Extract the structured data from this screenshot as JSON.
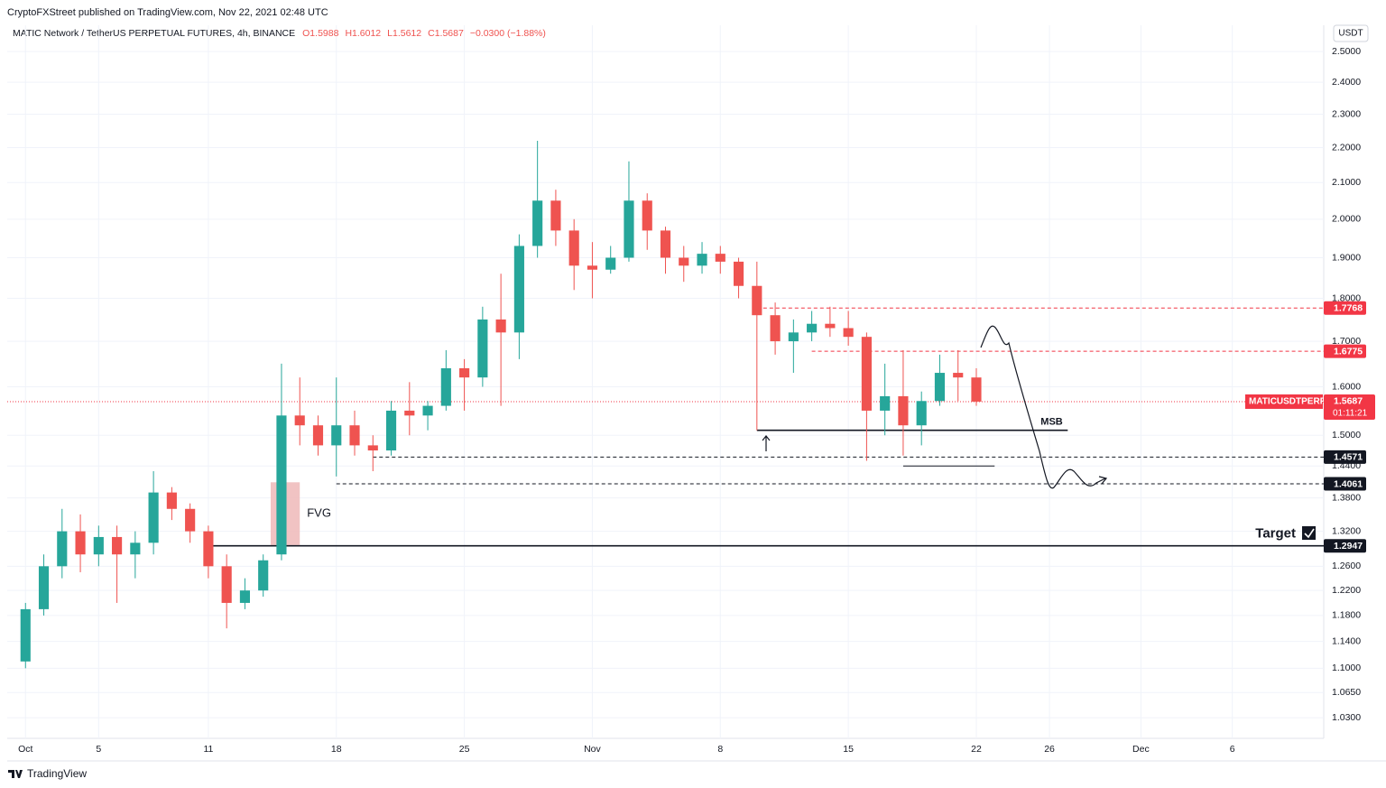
{
  "chart_data": {
    "type": "candlestick",
    "publisher": "CryptoFXStreet published on TradingView.com, Nov 22, 2021 02:48 UTC",
    "title": "MATIC Network / TetherUS PERPETUAL FUTURES, 4h, BINANCE",
    "ohlc": [
      "O1.5988",
      "H1.6012",
      "L1.5612",
      "C1.5687",
      "−0.0300 (−1.88%)"
    ],
    "currency": "USDT",
    "brand": "TradingView",
    "log_scale": true,
    "grid": true,
    "up_color": "#26a69a",
    "down_color": "#ef5350",
    "ylim": [
      1.002,
      2.589
    ],
    "yticks": [
      {
        "value": 2.5,
        "label": "2.5000"
      },
      {
        "value": 2.4,
        "label": "2.4000"
      },
      {
        "value": 2.3,
        "label": "2.3000"
      },
      {
        "value": 2.2,
        "label": "2.2000"
      },
      {
        "value": 2.1,
        "label": "2.1000"
      },
      {
        "value": 2.0,
        "label": "2.0000"
      },
      {
        "value": 1.9,
        "label": "1.9000"
      },
      {
        "value": 1.8,
        "label": "1.8000"
      },
      {
        "value": 1.7,
        "label": "1.7000"
      },
      {
        "value": 1.6,
        "label": "1.6000"
      },
      {
        "value": 1.5,
        "label": "1.5000"
      },
      {
        "value": 1.44,
        "label": "1.4400"
      },
      {
        "value": 1.38,
        "label": "1.3800"
      },
      {
        "value": 1.32,
        "label": "1.3200"
      },
      {
        "value": 1.26,
        "label": "1.2600"
      },
      {
        "value": 1.22,
        "label": "1.2200"
      },
      {
        "value": 1.18,
        "label": "1.1800"
      },
      {
        "value": 1.14,
        "label": "1.1400"
      },
      {
        "value": 1.1,
        "label": "1.1000"
      },
      {
        "value": 1.065,
        "label": "1.0650"
      },
      {
        "value": 1.03,
        "label": "1.0300"
      }
    ],
    "xlim": [
      "Sep 30",
      "Dec 11"
    ],
    "xticks": [
      {
        "value": "Oct 1",
        "label": "Oct"
      },
      {
        "value": "Oct 5",
        "label": "5"
      },
      {
        "value": "Oct 11",
        "label": "11"
      },
      {
        "value": "Oct 18",
        "label": "18"
      },
      {
        "value": "Oct 25",
        "label": "25"
      },
      {
        "value": "Nov 1",
        "label": "Nov"
      },
      {
        "value": "Nov 8",
        "label": "8"
      },
      {
        "value": "Nov 15",
        "label": "15"
      },
      {
        "value": "Nov 22",
        "label": "22"
      },
      {
        "value": "Nov 26",
        "label": "26"
      },
      {
        "value": "Dec 1",
        "label": "Dec"
      },
      {
        "value": "Dec 6",
        "label": "6"
      }
    ],
    "x": [
      "Oct 1",
      "Oct 2",
      "Oct 3",
      "Oct 4",
      "Oct 5",
      "Oct 6",
      "Oct 7",
      "Oct 8",
      "Oct 9",
      "Oct 10",
      "Oct 11",
      "Oct 12",
      "Oct 13",
      "Oct 14",
      "Oct 15",
      "Oct 16",
      "Oct 17",
      "Oct 18",
      "Oct 19",
      "Oct 20",
      "Oct 21",
      "Oct 22",
      "Oct 23",
      "Oct 24",
      "Oct 25",
      "Oct 26",
      "Oct 27",
      "Oct 28",
      "Oct 29",
      "Oct 30",
      "Oct 31",
      "Nov 1",
      "Nov 2",
      "Nov 3",
      "Nov 4",
      "Nov 5",
      "Nov 6",
      "Nov 7",
      "Nov 8",
      "Nov 9",
      "Nov 10",
      "Nov 11",
      "Nov 12",
      "Nov 13",
      "Nov 14",
      "Nov 15",
      "Nov 16",
      "Nov 17",
      "Nov 18",
      "Nov 19",
      "Nov 20",
      "Nov 21",
      "Nov 22"
    ],
    "open": [
      1.11,
      1.19,
      1.26,
      1.32,
      1.28,
      1.31,
      1.28,
      1.3,
      1.39,
      1.36,
      1.32,
      1.26,
      1.2,
      1.22,
      1.28,
      1.54,
      1.52,
      1.48,
      1.52,
      1.48,
      1.47,
      1.55,
      1.54,
      1.56,
      1.64,
      1.62,
      1.75,
      1.72,
      1.93,
      2.05,
      1.97,
      1.88,
      1.87,
      1.9,
      2.05,
      1.97,
      1.9,
      1.88,
      1.91,
      1.89,
      1.83,
      1.76,
      1.7,
      1.72,
      1.74,
      1.73,
      1.71,
      1.55,
      1.58,
      1.52,
      1.57,
      1.63,
      1.62
    ],
    "high": [
      1.2,
      1.28,
      1.36,
      1.35,
      1.33,
      1.33,
      1.32,
      1.43,
      1.4,
      1.37,
      1.33,
      1.28,
      1.24,
      1.28,
      1.65,
      1.62,
      1.54,
      1.62,
      1.55,
      1.5,
      1.57,
      1.61,
      1.57,
      1.68,
      1.66,
      1.78,
      1.86,
      1.96,
      2.22,
      2.08,
      2.0,
      1.94,
      1.93,
      2.16,
      2.07,
      1.98,
      1.93,
      1.94,
      1.93,
      1.9,
      1.89,
      1.79,
      1.75,
      1.77,
      1.78,
      1.77,
      1.72,
      1.65,
      1.68,
      1.59,
      1.67,
      1.68,
      1.64
    ],
    "low": [
      1.1,
      1.18,
      1.24,
      1.25,
      1.26,
      1.2,
      1.24,
      1.28,
      1.34,
      1.3,
      1.24,
      1.16,
      1.19,
      1.21,
      1.27,
      1.48,
      1.46,
      1.42,
      1.46,
      1.43,
      1.46,
      1.5,
      1.51,
      1.55,
      1.55,
      1.6,
      1.56,
      1.66,
      1.9,
      1.93,
      1.82,
      1.8,
      1.86,
      1.89,
      1.92,
      1.86,
      1.84,
      1.86,
      1.86,
      1.8,
      1.51,
      1.67,
      1.63,
      1.7,
      1.71,
      1.69,
      1.45,
      1.5,
      1.46,
      1.48,
      1.56,
      1.57,
      1.56
    ],
    "close": [
      1.19,
      1.26,
      1.32,
      1.28,
      1.31,
      1.28,
      1.3,
      1.39,
      1.36,
      1.32,
      1.26,
      1.2,
      1.22,
      1.27,
      1.54,
      1.52,
      1.48,
      1.52,
      1.48,
      1.47,
      1.55,
      1.54,
      1.56,
      1.64,
      1.62,
      1.75,
      1.72,
      1.93,
      2.05,
      1.97,
      1.88,
      1.87,
      1.9,
      2.05,
      1.97,
      1.9,
      1.88,
      1.91,
      1.89,
      1.83,
      1.76,
      1.7,
      1.72,
      1.74,
      1.73,
      1.71,
      1.55,
      1.58,
      1.52,
      1.57,
      1.63,
      1.62,
      1.5687
    ],
    "last": {
      "value": 1.5687,
      "symbol": "MATICUSDTPERP",
      "countdown": "01:11:21",
      "color": "#f23645"
    },
    "levels": [
      {
        "value": 1.7768,
        "color": "#f23645",
        "style": "dashed",
        "from": "Nov 10"
      },
      {
        "value": 1.6775,
        "color": "#f23645",
        "style": "dashed",
        "from": "Nov 13"
      },
      {
        "value": 1.4571,
        "color": "#131722",
        "style": "dashed",
        "from": "Oct 20"
      },
      {
        "value": 1.4061,
        "color": "#131722",
        "style": "dashed",
        "from": "Oct 18"
      },
      {
        "value": 1.2947,
        "color": "#131722",
        "style": "solid",
        "from": "Oct 11"
      }
    ],
    "msb": {
      "label": "MSB",
      "value": 1.51,
      "from": "Nov 10",
      "to": "Nov 27"
    },
    "support": {
      "value": 1.44,
      "from": "Nov 18",
      "to": "Nov 23"
    },
    "fvg": {
      "label": "FVG",
      "low": 1.296,
      "high": 1.409,
      "from": "Oct 15",
      "to": "Oct 16",
      "color": "#eeb8b8"
    },
    "target": {
      "label": "Target"
    }
  }
}
